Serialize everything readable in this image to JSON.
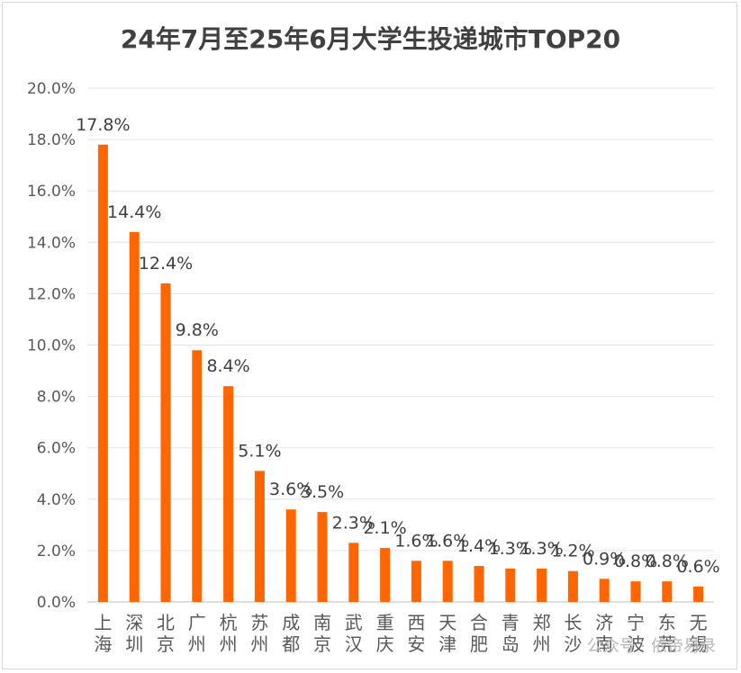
{
  "chart_data": {
    "type": "bar",
    "title": "24年7月至25年6月大学生投递城市TOP20",
    "xlabel": "",
    "ylabel": "",
    "ylim": [
      0,
      20
    ],
    "yticks": [
      "0.0%",
      "2.0%",
      "4.0%",
      "6.0%",
      "8.0%",
      "10.0%",
      "12.0%",
      "14.0%",
      "16.0%",
      "18.0%",
      "20.0%"
    ],
    "categories": [
      "上海",
      "深圳",
      "北京",
      "广州",
      "杭州",
      "苏州",
      "成都",
      "南京",
      "武汉",
      "重庆",
      "西安",
      "天津",
      "合肥",
      "青岛",
      "郑州",
      "长沙",
      "济南",
      "宁波",
      "东莞",
      "无锡"
    ],
    "values": [
      17.8,
      14.4,
      12.4,
      9.8,
      8.4,
      5.1,
      3.6,
      3.5,
      2.3,
      2.1,
      1.6,
      1.6,
      1.4,
      1.3,
      1.3,
      1.2,
      0.9,
      0.8,
      0.8,
      0.6
    ],
    "data_labels": [
      "17.8%",
      "14.4%",
      "12.4%",
      "9.8%",
      "8.4%",
      "5.1%",
      "3.6%",
      "3.5%",
      "2.3%",
      "2.1%",
      "1.6%",
      "1.6%",
      "1.4%",
      "1.3%",
      "1.3%",
      "1.2%",
      "0.9%",
      "0.8%",
      "0.8%",
      "0.6%"
    ],
    "bar_color": "#ff6600",
    "grid": true,
    "legend": "none"
  },
  "watermark": "公众号 · 依帝易录"
}
